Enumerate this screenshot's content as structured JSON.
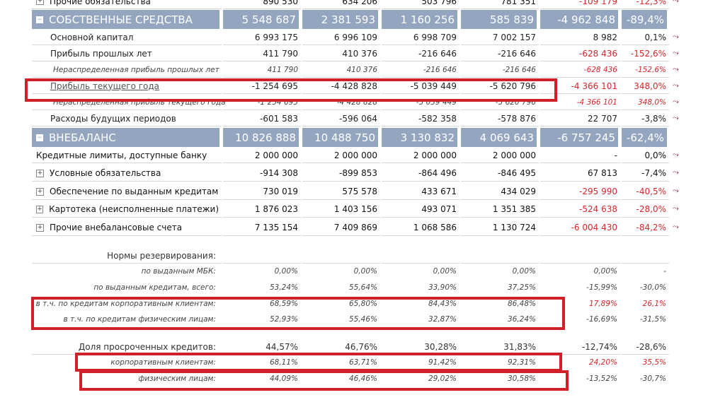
{
  "colors": {
    "header_bg": "#94a5bf",
    "negative": "#d8262c",
    "highlight_box": "#d0202a"
  },
  "rows": [
    {
      "type": "bold line",
      "expand": "plus",
      "label": "Прочие обязательства",
      "values": [
        "890 530",
        "634 206",
        "503 796",
        "781 351",
        "-109 179",
        "-12,3%"
      ],
      "neg": [
        4,
        5
      ],
      "trend": true
    },
    {
      "type": "head",
      "expand": "minus",
      "label": "СОБСТВЕННЫЕ СРЕДСТВА",
      "values": [
        "5 548 687",
        "2 381 593",
        "1 160 256",
        "585 839",
        "-4 962 848",
        "-89,4%"
      ],
      "neg": []
    },
    {
      "type": "line ind",
      "label": "Основной капитал",
      "values": [
        "6 993 175",
        "6 996 109",
        "6 998 709",
        "7 002 157",
        "8 982",
        "0,1%"
      ],
      "neg": [],
      "trend": true
    },
    {
      "type": "line ind",
      "label": "Прибыль прошлых лет",
      "values": [
        "411 790",
        "410 376",
        "-216 646",
        "-216 646",
        "-628 436",
        "-152,6%"
      ],
      "neg": [
        4,
        5
      ],
      "trend": true
    },
    {
      "type": "line it ind2",
      "label": "Нераспределенная прибыль прошлых лет",
      "values": [
        "411 790",
        "410 376",
        "-216 646",
        "-216 646",
        "-628 436",
        "-152,6%"
      ],
      "neg": [
        4,
        5
      ],
      "trend": true
    },
    {
      "type": "line ind lnk",
      "label": "Прибыль текущего года",
      "values": [
        "-1 254 695",
        "-4 428 828",
        "-5 039 449",
        "-5 620 796",
        "-4 366 101",
        "348,0%"
      ],
      "neg": [
        4,
        5
      ],
      "trend": true
    },
    {
      "type": "line it ind2",
      "label": "Нераспределенная прибыль текущего года",
      "values": [
        "-1 254 695",
        "-4 428 828",
        "-5 039 449",
        "-5 620 796",
        "-4 366 101",
        "348,0%"
      ],
      "neg": [
        4,
        5
      ],
      "trend": true
    },
    {
      "type": "line ind",
      "label": "Расходы будущих периодов",
      "values": [
        "-601 583",
        "-596 064",
        "-582 358",
        "-578 876",
        "22 707",
        "-3,8%"
      ],
      "neg": [],
      "trend": true
    },
    {
      "type": "head",
      "expand": "minus",
      "label": "ВНЕБАЛАНС",
      "values": [
        "10 826 888",
        "10 488 750",
        "3 130 832",
        "4 069 643",
        "-6 757 245",
        "-62,4%"
      ],
      "neg": []
    },
    {
      "type": "line bold",
      "label": "Кредитные лимиты, доступные банку",
      "values": [
        "2 000 000",
        "2 000 000",
        "2 000 000",
        "2 000 000",
        "-",
        "0,0%"
      ],
      "neg": [],
      "trend": true
    },
    {
      "type": "line bold",
      "expand": "plus",
      "label": "Условные обязательства",
      "values": [
        "-914 308",
        "-899 853",
        "-864 496",
        "-846 495",
        "67 813",
        "-7,4%"
      ],
      "neg": [],
      "trend": true
    },
    {
      "type": "line bold",
      "expand": "plus",
      "label": "Обеспечение по выданным кредитам",
      "values": [
        "730 019",
        "575 578",
        "433 671",
        "434 029",
        "-295 990",
        "-40,5%"
      ],
      "neg": [
        4,
        5
      ],
      "trend": true
    },
    {
      "type": "line bold",
      "expand": "plus",
      "label": "Картотека (неисполненные платежи)",
      "values": [
        "1 876 023",
        "1 403 156",
        "493 071",
        "1 351 385",
        "-524 638",
        "-28,0%"
      ],
      "neg": [
        4,
        5
      ],
      "trend": true
    },
    {
      "type": "line bold",
      "expand": "plus",
      "label": "Прочие внебалансовые счета",
      "values": [
        "7 135 154",
        "7 409 869",
        "1 068 586",
        "1 130 724",
        "-6 004 430",
        "-84,2%"
      ],
      "neg": [
        4,
        5
      ],
      "trend": true
    },
    {
      "type": "norm plain line",
      "label": "Нормы резервирования:",
      "values": [
        "",
        "",
        "",
        "",
        "",
        ""
      ],
      "neg": []
    },
    {
      "type": "norm",
      "label": "по выданным МБК:",
      "values": [
        "0,00%",
        "0,00%",
        "0,00%",
        "0,00%",
        "0,00%",
        "-"
      ],
      "neg": []
    },
    {
      "type": "norm",
      "label": "по выданным кредитам, всего:",
      "values": [
        "53,24%",
        "55,64%",
        "33,90%",
        "37,25%",
        "-15,99%",
        "-30,0%"
      ],
      "neg": []
    },
    {
      "type": "norm",
      "label": "в т.ч. по кредитам корпоративным клиентам:",
      "values": [
        "68,59%",
        "65,80%",
        "84,43%",
        "86,48%",
        "17,89%",
        "26,1%"
      ],
      "neg": [
        4,
        5
      ]
    },
    {
      "type": "norm",
      "label": "в т.ч. по кредитам физическим лицам:",
      "values": [
        "52,93%",
        "55,46%",
        "32,87%",
        "36,24%",
        "-16,69%",
        "-31,5%"
      ],
      "neg": []
    },
    {
      "type": "norm plain line",
      "label": "Доля просроченных кредитов:",
      "values": [
        "44,57%",
        "46,76%",
        "30,28%",
        "31,83%",
        "-12,74%",
        "-28,6%"
      ],
      "neg": []
    },
    {
      "type": "norm",
      "label": "корпоративным клиентам:",
      "values": [
        "68,11%",
        "63,71%",
        "91,42%",
        "92,31%",
        "24,20%",
        "35,5%"
      ],
      "neg": [
        4,
        5
      ]
    },
    {
      "type": "norm",
      "label": "физическим лицам:",
      "values": [
        "44,09%",
        "46,46%",
        "29,02%",
        "30,58%",
        "-13,52%",
        "-30,7%"
      ],
      "neg": []
    }
  ]
}
